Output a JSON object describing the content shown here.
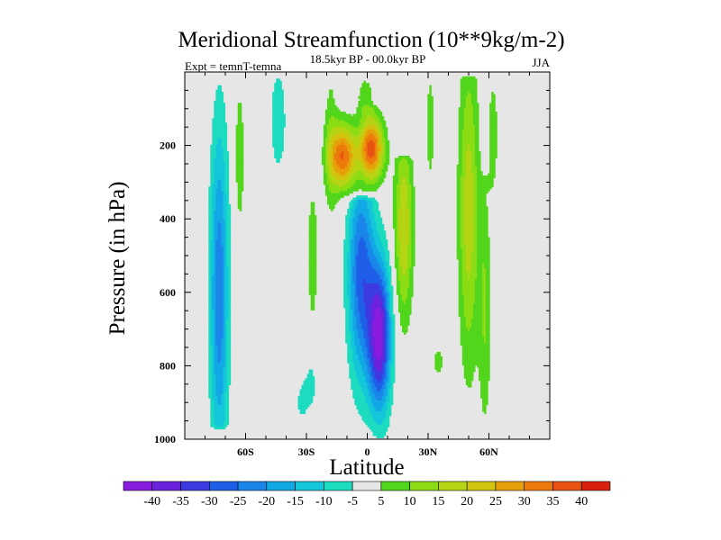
{
  "chart_data": {
    "type": "heatmap",
    "title": "Meridional Streamfunction (10**9kg/m-2)",
    "subtitle": "18.5kyr BP - 00.0kyr BP",
    "left_label": "Expt = temnT-temna",
    "right_label": "JJA",
    "xlabel": "Latitude",
    "ylabel": "Pressure (in hPa)",
    "xlim": [
      -90,
      90
    ],
    "ylim": [
      1000,
      0
    ],
    "x_ticks": [
      {
        "value": -60,
        "label": "60S"
      },
      {
        "value": -30,
        "label": "30S"
      },
      {
        "value": 0,
        "label": "0"
      },
      {
        "value": 30,
        "label": "30N"
      },
      {
        "value": 60,
        "label": "60N"
      }
    ],
    "y_ticks": [
      {
        "value": 200,
        "label": "200"
      },
      {
        "value": 400,
        "label": "400"
      },
      {
        "value": 600,
        "label": "600"
      },
      {
        "value": 800,
        "label": "800"
      },
      {
        "value": 1000,
        "label": "1000"
      }
    ],
    "contour_levels": [
      -40,
      -35,
      -30,
      -25,
      -20,
      -15,
      -10,
      -5,
      5,
      10,
      15,
      20,
      25,
      30,
      35,
      40
    ],
    "colorbar_labels": [
      "-40",
      "-35",
      "-30",
      "-25",
      "-20",
      "-15",
      "-10",
      "-5",
      "5",
      "10",
      "15",
      "20",
      "25",
      "30",
      "35",
      "40"
    ],
    "colors": [
      "#8a1ce0",
      "#6a22dc",
      "#3c3ae0",
      "#1f5fe8",
      "#1a86ea",
      "#12a8e6",
      "#14c6da",
      "#1cdcc0",
      "#e6e6e6",
      "#52d61c",
      "#8cdc14",
      "#b4d414",
      "#d2c40c",
      "#e6a00a",
      "#ec7a0a",
      "#e85212",
      "#d8200e"
    ],
    "background": "#e6e6e6",
    "features": [
      {
        "lat": -73,
        "width": 4.5,
        "p0": 20,
        "p1": 960,
        "cp": 600,
        "spread": 320,
        "amp": -24
      },
      {
        "lat": -63,
        "width": 2.5,
        "p0": 20,
        "p1": 470,
        "cp": 230,
        "spread": 160,
        "amp": 8
      },
      {
        "lat": -44,
        "width": 4.5,
        "p0": 20,
        "p1": 260,
        "cp": 130,
        "spread": 120,
        "amp": -8
      },
      {
        "lat": -32,
        "width": 5,
        "p0": 840,
        "p1": 960,
        "cp": 900,
        "spread": 50,
        "amp": -6
      },
      {
        "lat": -28,
        "width": 3,
        "p0": 780,
        "p1": 900,
        "cp": 840,
        "spread": 50,
        "amp": -6
      },
      {
        "lat": -27,
        "width": 2.5,
        "p0": 320,
        "p1": 660,
        "cp": 500,
        "spread": 140,
        "amp": 9
      },
      {
        "lat": -18,
        "width": 3.5,
        "p0": 20,
        "p1": 420,
        "cp": 200,
        "spread": 160,
        "amp": 8
      },
      {
        "lat": -12,
        "width": 6.5,
        "p0": 100,
        "p1": 380,
        "cp": 230,
        "spread": 60,
        "amp": 35
      },
      {
        "lat": 2,
        "width": 6,
        "p0": 100,
        "p1": 330,
        "cp": 210,
        "spread": 60,
        "amp": 38
      },
      {
        "lat": -1,
        "width": 4,
        "p0": 20,
        "p1": 120,
        "cp": 70,
        "spread": 40,
        "amp": 9
      },
      {
        "lat": -3,
        "width": 6.5,
        "p0": 350,
        "p1": 960,
        "cp": 550,
        "spread": 200,
        "amp": -28
      },
      {
        "lat": 6,
        "width": 5.5,
        "p0": 280,
        "p1": 990,
        "cp": 720,
        "spread": 140,
        "amp": -42
      },
      {
        "lat": 18,
        "width": 4.5,
        "p0": 240,
        "p1": 930,
        "cp": 420,
        "spread": 180,
        "amp": 20
      },
      {
        "lat": 31,
        "width": 2,
        "p0": 20,
        "p1": 260,
        "cp": 150,
        "spread": 120,
        "amp": 8
      },
      {
        "lat": 35,
        "width": 2.5,
        "p0": 760,
        "p1": 820,
        "cp": 790,
        "spread": 30,
        "amp": 8
      },
      {
        "lat": 50,
        "width": 5,
        "p0": 20,
        "p1": 960,
        "cp": 380,
        "spread": 300,
        "amp": 18
      },
      {
        "lat": 58,
        "width": 3,
        "p0": 280,
        "p1": 960,
        "cp": 650,
        "spread": 230,
        "amp": 10
      },
      {
        "lat": 62,
        "width": 3,
        "p0": 20,
        "p1": 320,
        "cp": 170,
        "spread": 140,
        "amp": 7
      }
    ]
  }
}
